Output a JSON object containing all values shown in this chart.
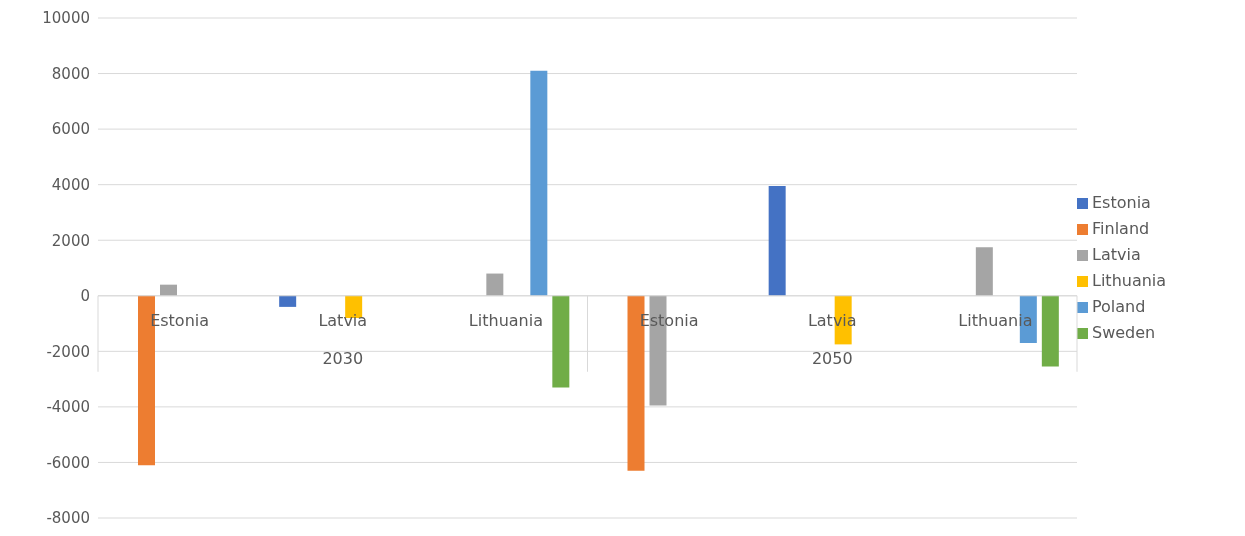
{
  "chart_data": {
    "type": "bar",
    "categories": [
      "Estonia",
      "Latvia",
      "Lithuania",
      "Estonia",
      "Latvia",
      "Lithuania"
    ],
    "annotations": [
      "2030",
      "2050"
    ],
    "series": [
      {
        "name": "Estonia",
        "color": "#4472c4",
        "values": [
          null,
          -400,
          null,
          null,
          3950,
          null
        ]
      },
      {
        "name": "Finland",
        "color": "#ed7d31",
        "values": [
          -6100,
          null,
          null,
          -6300,
          null,
          null
        ]
      },
      {
        "name": "Latvia",
        "color": "#a5a5a5",
        "values": [
          400,
          null,
          800,
          -3950,
          null,
          1750
        ]
      },
      {
        "name": "Lithuania",
        "color": "#ffc000",
        "values": [
          null,
          -800,
          null,
          null,
          -1750,
          null
        ]
      },
      {
        "name": "Poland",
        "color": "#5b9bd5",
        "values": [
          null,
          null,
          8100,
          null,
          null,
          -1700
        ]
      },
      {
        "name": "Sweden",
        "color": "#70ad47",
        "values": [
          null,
          null,
          -3300,
          null,
          null,
          -2550
        ]
      }
    ],
    "ylim": [
      -8000,
      10000
    ],
    "yticks": [
      -8000,
      -6000,
      -4000,
      -2000,
      0,
      2000,
      4000,
      6000,
      8000,
      10000
    ],
    "grid": "y",
    "legend": "right"
  }
}
